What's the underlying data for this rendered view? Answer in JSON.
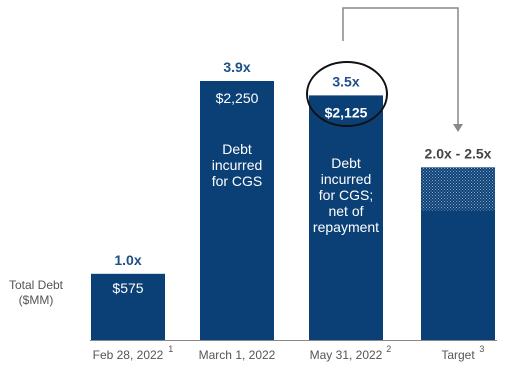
{
  "y_axis_label": [
    "Total Debt",
    "($MM)"
  ],
  "colors": {
    "bar": "#0B4077",
    "multiple_text": "#1E4F86",
    "axis_text": "#555555",
    "arrow": "#888888",
    "circle": "#111111"
  },
  "chart_data": {
    "type": "bar",
    "categories": [
      "Feb 28, 2022",
      "March 1, 2022",
      "May 31, 2022",
      "Target"
    ],
    "footnotes": [
      "1",
      "",
      "2",
      "3"
    ],
    "values": [
      575,
      2250,
      2125,
      null
    ],
    "value_labels": [
      "$575",
      "$2,250",
      "$2,125",
      ""
    ],
    "multiples": [
      "1.0x",
      "3.9x",
      "3.5x",
      "2.0x - 2.5x"
    ],
    "bar_notes": [
      [],
      [
        "Debt",
        "incurred",
        "for CGS"
      ],
      [
        "Debt",
        "incurred",
        "for CGS;",
        "net of",
        "repayment"
      ],
      []
    ],
    "target_range": {
      "low": 1125,
      "high": 1500
    },
    "highlighted_index": 2,
    "arrow": {
      "from": "May 31, 2022",
      "to": "Target"
    },
    "ylim": [
      0,
      2250
    ]
  }
}
